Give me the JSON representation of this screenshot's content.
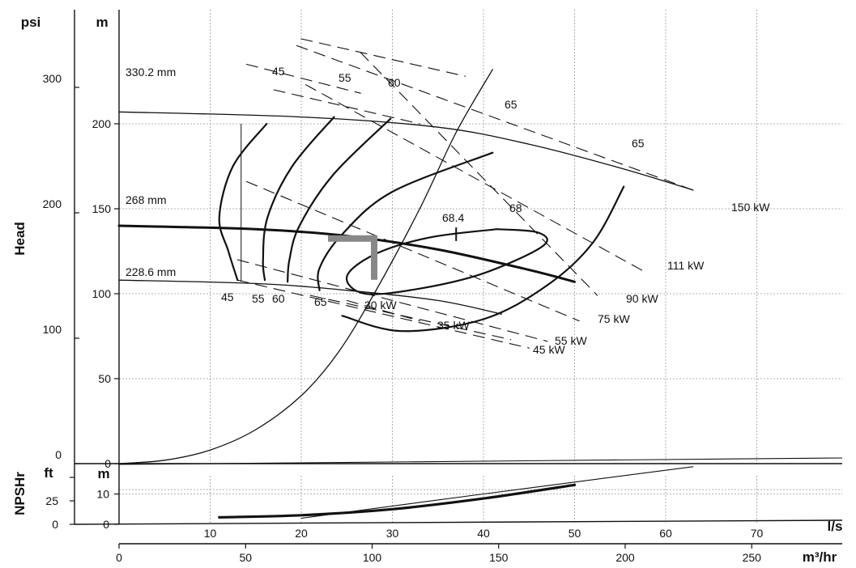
{
  "chart_data": {
    "type": "line",
    "title": "",
    "ylabel_main": "Head",
    "ylabel_npsh": "NPSHr",
    "units": {
      "psi": "psi",
      "m_main": "m",
      "ft": "ft",
      "m_npsh": "m",
      "ls": "l/s",
      "m3hr": "m³/hr"
    },
    "ticks": {
      "psi": [
        {
          "v": 0,
          "t": "0"
        },
        {
          "v": 100,
          "t": "100"
        },
        {
          "v": 200,
          "t": "200"
        },
        {
          "v": 300,
          "t": "300"
        }
      ],
      "m_main": [
        {
          "v": 0,
          "t": "0"
        },
        {
          "v": 50,
          "t": "50"
        },
        {
          "v": 100,
          "t": "100"
        },
        {
          "v": 150,
          "t": "150"
        },
        {
          "v": 200,
          "t": "200"
        }
      ],
      "ft": [
        {
          "v": 0,
          "t": "0"
        },
        {
          "v": 25,
          "t": "25"
        }
      ],
      "m_npsh": [
        {
          "v": 0,
          "t": "0"
        },
        {
          "v": 10,
          "t": "10"
        }
      ],
      "ls": [
        {
          "v": 10,
          "t": "10"
        },
        {
          "v": 20,
          "t": "20"
        },
        {
          "v": 30,
          "t": "30"
        },
        {
          "v": 40,
          "t": "40"
        },
        {
          "v": 50,
          "t": "50"
        },
        {
          "v": 60,
          "t": "60"
        },
        {
          "v": 70,
          "t": "70"
        }
      ],
      "m3hr": [
        {
          "v": 0,
          "t": "0"
        },
        {
          "v": 50,
          "t": "50"
        },
        {
          "v": 100,
          "t": "100"
        },
        {
          "v": 150,
          "t": "150"
        },
        {
          "v": 200,
          "t": "200"
        },
        {
          "v": 250,
          "t": "250"
        }
      ]
    },
    "head_range_m": [
      0,
      225
    ],
    "flow_range_ls": [
      0,
      79
    ],
    "npsh_range_m": [
      0,
      22
    ],
    "grid": true,
    "impeller_curves": [
      {
        "name": "330.2 mm",
        "x": [
          0,
          20,
          35,
          45,
          55,
          63
        ],
        "y": [
          207,
          204,
          198,
          188,
          174,
          161
        ]
      },
      {
        "name": "268 mm",
        "x": [
          0,
          15,
          25,
          35,
          45,
          50
        ],
        "y": [
          140,
          138,
          134,
          126,
          114,
          107
        ]
      },
      {
        "name": "228.6 mm",
        "x": [
          0,
          15,
          25,
          35,
          42
        ],
        "y": [
          108,
          106,
          102,
          96,
          88
        ]
      }
    ],
    "efficiency_contours": [
      {
        "label": "45",
        "x": [
          16.2,
          12.5,
          11,
          12,
          13
        ],
        "y": [
          200,
          175,
          145,
          125,
          108
        ]
      },
      {
        "label": "55",
        "x": [
          23.6,
          19,
          16.3,
          15.8,
          16
        ],
        "y": [
          204,
          175,
          145,
          120,
          108
        ]
      },
      {
        "label": "60",
        "x": [
          29.8,
          23.5,
          19.8,
          18.7,
          18.5
        ],
        "y": [
          203,
          170,
          140,
          120,
          107
        ]
      },
      {
        "label": "65",
        "x": [
          41,
          30,
          24.5,
          22,
          22
        ],
        "y": [
          183,
          160,
          135,
          115,
          102
        ]
      },
      {
        "label": "65",
        "x": [
          55.4,
          52,
          47,
          40,
          31,
          24.5
        ],
        "y": [
          163,
          130,
          105,
          85,
          78,
          87
        ]
      },
      {
        "label": "68",
        "x": [
          41.5,
          34,
          28,
          25,
          27,
          33,
          40,
          46.5,
          46,
          41.5
        ],
        "y": [
          138,
          133,
          123,
          110,
          100,
          103,
          112,
          128,
          136,
          138
        ]
      },
      {
        "label": "68.4",
        "x": [],
        "y": []
      }
    ],
    "power_lines": [
      {
        "label": "150 kW",
        "x": [
          19.5,
          63
        ],
        "y": [
          246,
          161
        ]
      },
      {
        "label": "111 kW",
        "x": [
          20.5,
          58
        ],
        "y": [
          223,
          112
        ]
      },
      {
        "label": "90 kW",
        "x": [
          26.5,
          52.5
        ],
        "y": [
          242,
          99
        ]
      },
      {
        "label": "75 kW",
        "x": [
          14,
          50.5
        ],
        "y": [
          166,
          84
        ]
      },
      {
        "label": "55 kW",
        "x": [
          13,
          47
        ],
        "y": [
          120,
          72
        ]
      },
      {
        "label": "45 kW",
        "x": [
          13,
          45
        ],
        "y": [
          108,
          68
        ]
      },
      {
        "label": "35 kW",
        "x": [
          21,
          43
        ],
        "y": [
          99,
          73
        ]
      },
      {
        "label": "30 kW",
        "x": [
          25,
          33
        ],
        "y": [
          96,
          84
        ]
      }
    ],
    "system_curve": {
      "x": [
        0,
        5,
        10,
        15,
        20,
        24,
        28,
        33,
        37,
        41
      ],
      "y": [
        0,
        2,
        8,
        20,
        40,
        65,
        100,
        150,
        195,
        232
      ]
    },
    "duty_point": {
      "x": 28,
      "y": 132
    },
    "npshr_curve": {
      "x": [
        11,
        20,
        30,
        40,
        50
      ],
      "y": [
        2.3,
        3,
        5,
        8.5,
        13
      ]
    },
    "npsh_thin_line": {
      "x": [
        20,
        40,
        63
      ],
      "y": [
        2,
        10,
        19
      ]
    },
    "labels": {
      "impeller_330": "330.2 mm",
      "impeller_268": "268 mm",
      "impeller_228": "228.6 mm",
      "eff_45_top": "45",
      "eff_55_top": "55",
      "eff_60_top": "60",
      "eff_65_top": "65",
      "eff_65_right": "65",
      "eff_45_bot": "45",
      "eff_55_bot": "55",
      "eff_60_bot": "60",
      "eff_65_bot": "65",
      "eff_684": "68.4",
      "eff_68": "68",
      "p150": "150 kW",
      "p111": "111 kW",
      "p90": "90 kW",
      "p75": "75 kW",
      "p55": "55 kW",
      "p45": "45 kW",
      "p35": "35 kW",
      "p30": "30 kW"
    }
  }
}
